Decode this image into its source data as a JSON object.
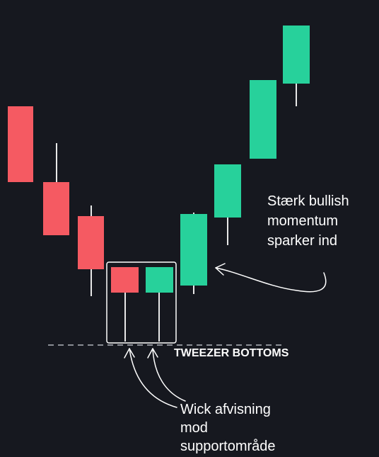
{
  "pattern_label": "TWEEZER BOTTOMS",
  "bullish_note": [
    "Stærk bullish",
    "momentum",
    "sparker ind"
  ],
  "wick_note": [
    "Wick afvisning",
    "mod",
    "supportområde"
  ]
}
